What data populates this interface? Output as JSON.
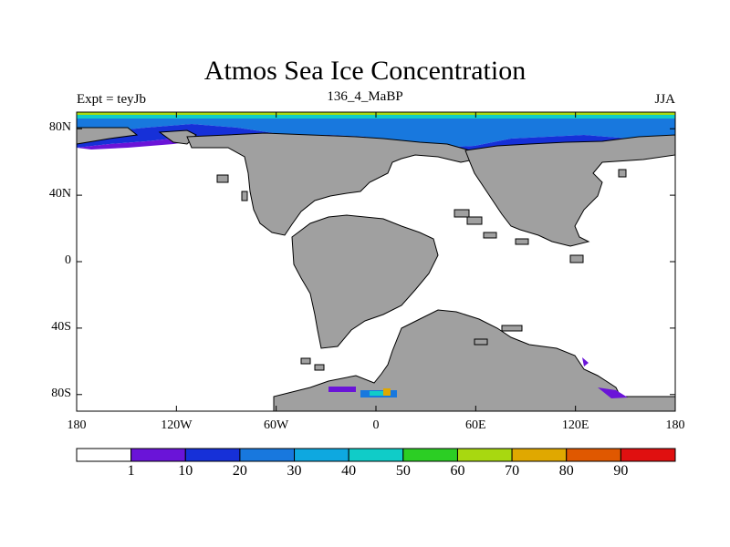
{
  "title": "Atmos Sea Ice Concentration",
  "left_label": "Expt = teyJb",
  "center_label": "136_4_MaBP",
  "right_label": "JJA",
  "map": {
    "lon_range": [
      -180,
      180
    ],
    "lat_range": [
      -90,
      90
    ],
    "x_ticks": [
      {
        "lon": -180,
        "label": "180"
      },
      {
        "lon": -120,
        "label": "120W"
      },
      {
        "lon": -60,
        "label": "60W"
      },
      {
        "lon": 0,
        "label": "0"
      },
      {
        "lon": 60,
        "label": "60E"
      },
      {
        "lon": 120,
        "label": "120E"
      },
      {
        "lon": 180,
        "label": "180"
      }
    ],
    "y_ticks": [
      {
        "lat": 80,
        "label": "80N"
      },
      {
        "lat": 40,
        "label": "40N"
      },
      {
        "lat": 0,
        "label": "0"
      },
      {
        "lat": -40,
        "label": "40S"
      },
      {
        "lat": -80,
        "label": "80S"
      }
    ],
    "land_color": "#a0a0a0",
    "ocean_color": "#ffffff"
  },
  "colorbar": {
    "colors": [
      "#ffffff",
      "#6a14d8",
      "#1630d8",
      "#1878de",
      "#0ea8e0",
      "#10ccc8",
      "#2cce24",
      "#a8d810",
      "#e0a800",
      "#e05800",
      "#e01010"
    ],
    "labels": [
      "1",
      "10",
      "20",
      "30",
      "40",
      "50",
      "60",
      "70",
      "80",
      "90"
    ]
  }
}
